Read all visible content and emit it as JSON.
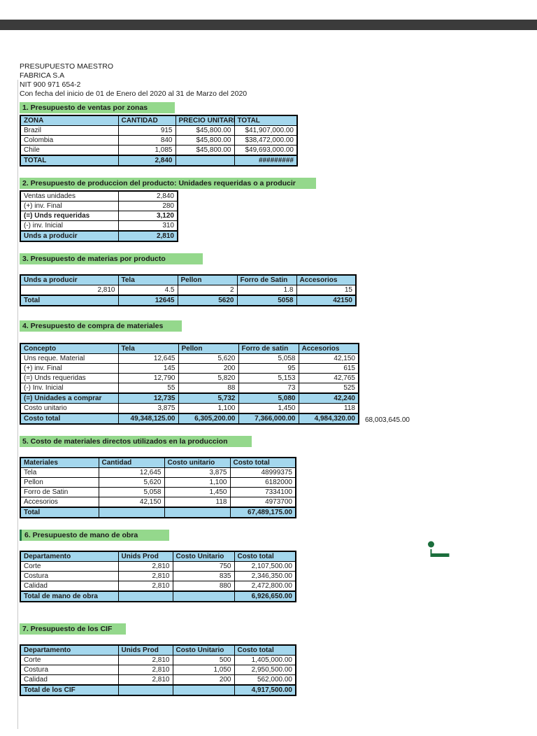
{
  "colors": {
    "topbar_color": "#3b3b3b",
    "section_fill": "#94d88c",
    "header_fill": "#a4d7ed",
    "logo_green": "#1b6e3c"
  },
  "header": {
    "line1": "PRESUPUESTO MAESTRO",
    "line2": "FABRICA S.A",
    "line3": "NIT 900 971 654-2",
    "line4": "Con fecha del inicio de 01 de Enero del 2020 al 31 de Marzo del 2020"
  },
  "annotations": {
    "grand_total": "68,003,645.00"
  },
  "sections": {
    "ventas": {
      "heading": "1. Presupuesto de ventas por zonas",
      "table": {
        "rows": [
          {
            "style": "header",
            "cells": [
              "ZONA",
              "CANTIDAD",
              "PRECIO UNITARI",
              "TOTAL"
            ]
          },
          {
            "style": "normal",
            "cells": [
              "Brazil",
              "915",
              "$45,800.00",
              "$41,907,000.00"
            ]
          },
          {
            "style": "normal",
            "cells": [
              "Colombia",
              "840",
              "$45,800.00",
              "$38,472,000.00"
            ]
          },
          {
            "style": "normal",
            "cells": [
              "Chile",
              "1,085",
              "$45,800.00",
              "$49,693,000.00"
            ]
          },
          {
            "style": "total",
            "cells": [
              "TOTAL",
              "2,840",
              "",
              "#########"
            ]
          }
        ]
      }
    },
    "produccion": {
      "heading": "2. Presupuesto  de produccion del producto: Unidades requeridas o a producir",
      "table": {
        "rows": [
          {
            "style": "normal",
            "cells": [
              "Ventas unidades",
              "2,840"
            ]
          },
          {
            "style": "normal",
            "cells": [
              "(+) inv. Final",
              "280"
            ]
          },
          {
            "style": "bold",
            "cells": [
              "(=) Unds requeridas",
              "3,120"
            ]
          },
          {
            "style": "normal",
            "cells": [
              "(-) inv. Inicial",
              "310"
            ]
          },
          {
            "style": "total",
            "cells": [
              "Unds a producir",
              "2,810"
            ]
          }
        ]
      }
    },
    "materias": {
      "heading": "3. Presupuesto de materias por producto",
      "table": {
        "rows": [
          {
            "style": "header",
            "cells": [
              "Unds a producir",
              "Tela",
              "Pellon",
              "Forro de Satin",
              "Accesorios"
            ]
          },
          {
            "style": "normal",
            "cells": [
              "2,810",
              "4.5",
              "2",
              "1.8",
              "15"
            ]
          },
          {
            "style": "total",
            "cells": [
              "Total",
              "12645",
              "5620",
              "5058",
              "42150"
            ]
          }
        ]
      }
    },
    "compra": {
      "heading": "4. Presupuesto de compra de materiales",
      "table": {
        "rows": [
          {
            "style": "header",
            "cells": [
              "Concepto",
              "Tela",
              "Pellon",
              "Forro de satin",
              "Accesorios"
            ]
          },
          {
            "style": "normal",
            "cells": [
              "Uns reque. Material",
              "12,645",
              "5,620",
              "5,058",
              "42,150"
            ]
          },
          {
            "style": "normal",
            "cells": [
              "(+) inv. Final",
              "145",
              "200",
              "95",
              "615"
            ]
          },
          {
            "style": "normal",
            "cells": [
              "(=) Unds requeridas",
              "12,790",
              "5,820",
              "5,153",
              "42,765"
            ]
          },
          {
            "style": "normal",
            "cells": [
              "(-) Inv. Inicial",
              "55",
              "88",
              "73",
              "525"
            ]
          },
          {
            "style": "total",
            "cells": [
              "(=) Unidades a comprar",
              "12,735",
              "5,732",
              "5,080",
              "42,240"
            ]
          },
          {
            "style": "normal",
            "cells": [
              "Costo unitario",
              "3,875",
              "1,100",
              "1,450",
              "118"
            ]
          },
          {
            "style": "total",
            "cells": [
              "Costo total",
              "49,348,125.00",
              "6,305,200.00",
              "7,366,000.00",
              "4,984,320.00"
            ]
          }
        ]
      }
    },
    "costo_materiales": {
      "heading": "5. Costo de materiales directos utilizados en la produccion",
      "table": {
        "rows": [
          {
            "style": "header",
            "cells": [
              "Materiales",
              "Cantidad",
              "Costo unitario",
              "Costo total"
            ]
          },
          {
            "style": "normal",
            "cells": [
              "Tela",
              "12,645",
              "3,875",
              "48999375"
            ]
          },
          {
            "style": "normal",
            "cells": [
              "Pellon",
              "5,620",
              "1,100",
              "6182000"
            ]
          },
          {
            "style": "normal",
            "cells": [
              "Forro de Satin",
              "5,058",
              "1,450",
              "7334100"
            ]
          },
          {
            "style": "normal",
            "cells": [
              "Accesorios",
              "42,150",
              "118",
              "4973700"
            ]
          },
          {
            "style": "total",
            "cells": [
              "Total",
              "",
              "",
              "67,489,175.00"
            ]
          }
        ]
      }
    },
    "mano_obra": {
      "heading": "6. Presupuesto de mano de obra",
      "table": {
        "rows": [
          {
            "style": "header",
            "cells": [
              "Departamento",
              "Unids Prod",
              "Costo Unitario",
              "Costo total"
            ]
          },
          {
            "style": "normal",
            "cells": [
              "Corte",
              "2,810",
              "750",
              "2,107,500.00"
            ]
          },
          {
            "style": "normal",
            "cells": [
              "Costura",
              "2,810",
              "835",
              "2,346,350.00"
            ]
          },
          {
            "style": "normal",
            "cells": [
              "Calidad",
              "2,810",
              "880",
              "2,472,800.00"
            ]
          },
          {
            "style": "total",
            "cells": [
              "Total de mano de obra",
              "",
              "",
              "6,926,650.00"
            ]
          }
        ]
      }
    },
    "cif": {
      "heading": "7. Presupuesto de los CIF",
      "table": {
        "rows": [
          {
            "style": "header",
            "cells": [
              "Departamento",
              "Unids Prod",
              "Costo Unitario",
              "Costo total"
            ]
          },
          {
            "style": "normal",
            "cells": [
              "Corte",
              "2,810",
              "500",
              "1,405,000.00"
            ]
          },
          {
            "style": "normal",
            "cells": [
              "Costura",
              "2,810",
              "1,050",
              "2,950,500.00"
            ]
          },
          {
            "style": "normal",
            "cells": [
              "Calidad",
              "2,810",
              "200",
              "562,000.00"
            ]
          },
          {
            "style": "total",
            "cells": [
              "Total de los CIF",
              "",
              "",
              "4,917,500.00"
            ]
          }
        ]
      }
    }
  }
}
